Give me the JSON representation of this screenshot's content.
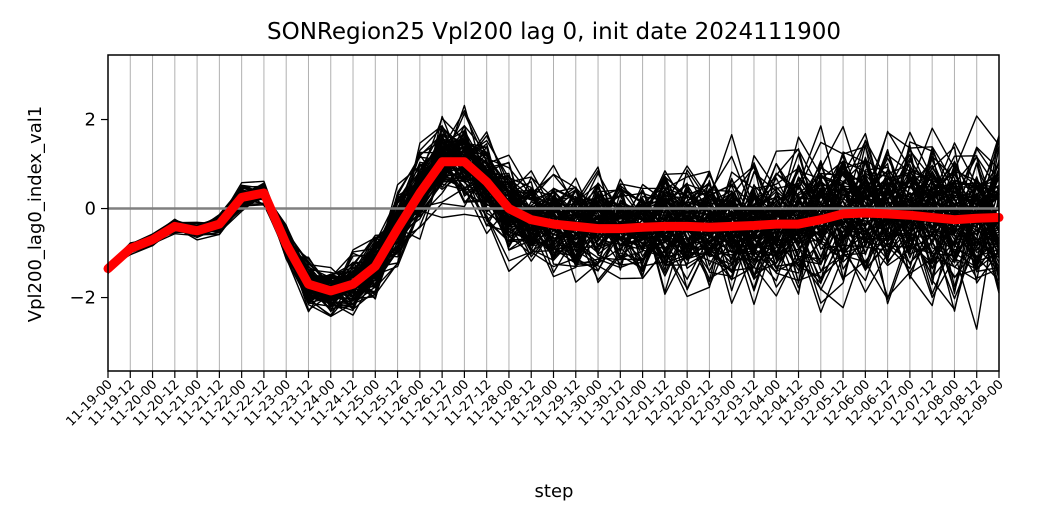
{
  "chart_data": {
    "type": "line",
    "title": "SONRegion25 Vpl200 lag 0, init date 2024111900",
    "xlabel": "step",
    "ylabel": "Vpl200_lag0_index_val1",
    "x": [
      "11-19-00",
      "11-19-12",
      "11-20-00",
      "11-20-12",
      "11-21-00",
      "11-21-12",
      "11-22-00",
      "11-22-12",
      "11-23-00",
      "11-23-12",
      "11-24-00",
      "11-24-12",
      "11-25-00",
      "11-25-12",
      "11-26-00",
      "11-26-12",
      "11-27-00",
      "11-27-12",
      "11-28-00",
      "11-28-12",
      "11-29-00",
      "11-29-12",
      "11-30-00",
      "11-30-12",
      "12-01-00",
      "12-01-12",
      "12-02-00",
      "12-02-12",
      "12-03-00",
      "12-03-12",
      "12-04-00",
      "12-04-12",
      "12-05-00",
      "12-05-12",
      "12-06-00",
      "12-06-12",
      "12-07-00",
      "12-07-12",
      "12-08-00",
      "12-08-12",
      "12-09-00"
    ],
    "ylim": [
      -3.65,
      3.45
    ],
    "yticks": [
      -2,
      0,
      2
    ],
    "yticklabels": [
      "−2",
      "0",
      "2"
    ],
    "grid": "vertical",
    "legend": "none",
    "reference_line": 0,
    "mean_color": "#ff0000",
    "member_color": "#000000",
    "zero_line_color": "#808080",
    "grid_color": "#b0b0b0",
    "ensemble_members": 100,
    "ensemble_spread": [
      0.05,
      0.06,
      0.08,
      0.08,
      0.09,
      0.12,
      0.16,
      0.15,
      0.22,
      0.3,
      0.3,
      0.35,
      0.4,
      0.45,
      0.5,
      0.55,
      0.55,
      0.6,
      0.62,
      0.62,
      0.62,
      0.65,
      0.65,
      0.68,
      0.7,
      0.72,
      0.75,
      0.78,
      0.8,
      0.82,
      0.85,
      0.9,
      0.92,
      0.95,
      0.97,
      1.0,
      1.0,
      1.02,
      1.02,
      1.05,
      1.05
    ],
    "series": [
      {
        "values": [
          -1.35,
          -0.9,
          -0.7,
          -0.4,
          -0.5,
          -0.35,
          0.25,
          0.35,
          -0.8,
          -1.7,
          -1.85,
          -1.7,
          -1.3,
          -0.45,
          0.35,
          1.05,
          1.05,
          0.6,
          0.0,
          -0.25,
          -0.35,
          -0.4,
          -0.45,
          -0.45,
          -0.42,
          -0.4,
          -0.4,
          -0.42,
          -0.4,
          -0.38,
          -0.35,
          -0.35,
          -0.25,
          -0.12,
          -0.1,
          -0.12,
          -0.15,
          -0.2,
          -0.25,
          -0.22,
          -0.2
        ]
      }
    ]
  }
}
